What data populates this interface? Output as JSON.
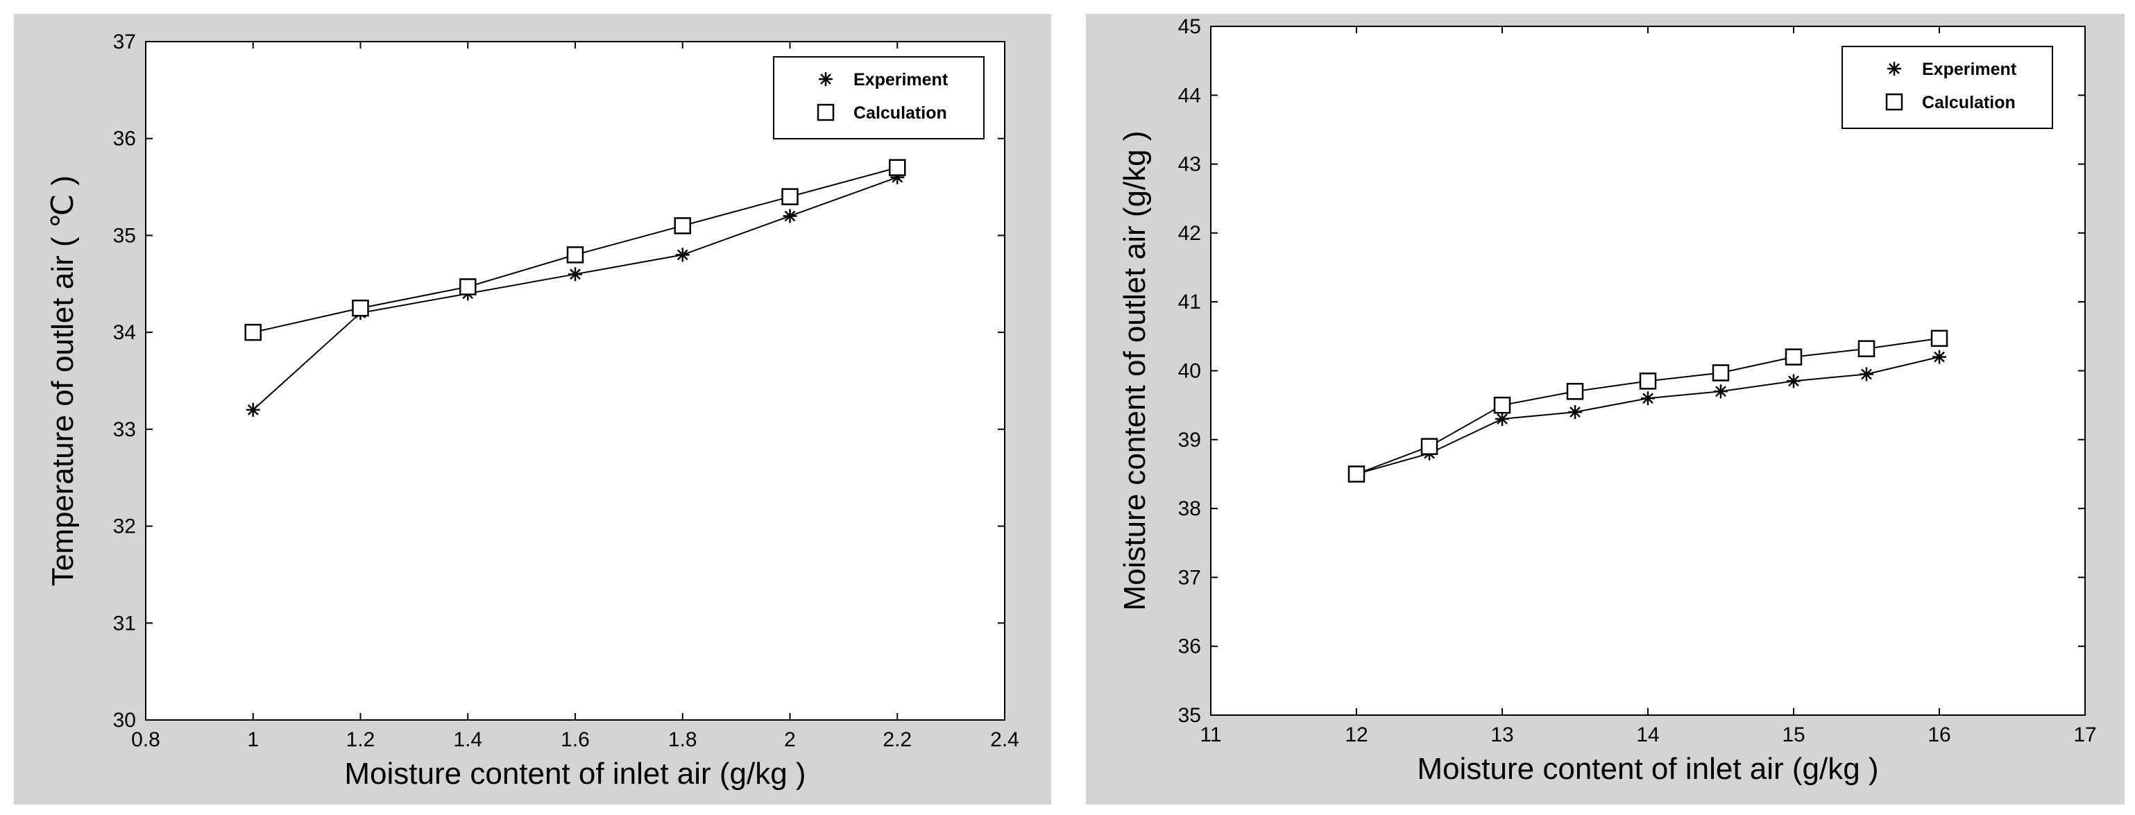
{
  "chart_data": [
    {
      "type": "line",
      "xlabel": "Moisture content of inlet air (g/kg )",
      "ylabel": "Temperature of outlet air ( ℃ )",
      "xlim": [
        0.8,
        2.4
      ],
      "ylim": [
        30,
        37
      ],
      "xticks": [
        0.8,
        1,
        1.2,
        1.4,
        1.6,
        1.8,
        2,
        2.2,
        2.4
      ],
      "yticks": [
        30,
        31,
        32,
        33,
        34,
        35,
        36,
        37
      ],
      "xtick_labels": [
        "0.8",
        "1",
        "1.2",
        "1.4",
        "1.6",
        "1.8",
        "2",
        "2.2",
        "2.4"
      ],
      "ytick_labels": [
        "30",
        "31",
        "32",
        "33",
        "34",
        "35",
        "36",
        "37"
      ],
      "grid": false,
      "legend_position": "top-right",
      "x": [
        1,
        1.2,
        1.4,
        1.6,
        1.8,
        2,
        2.2
      ],
      "series": [
        {
          "name": "Experiment",
          "marker": "asterisk",
          "values": [
            33.2,
            34.2,
            34.4,
            34.6,
            34.8,
            35.2,
            35.6
          ]
        },
        {
          "name": "Calculation",
          "marker": "square",
          "values": [
            34.0,
            34.25,
            34.47,
            34.8,
            35.1,
            35.4,
            35.7
          ]
        }
      ]
    },
    {
      "type": "line",
      "xlabel": "Moisture content of inlet air (g/kg )",
      "ylabel": "Moisture content of outlet air (g/kg )",
      "xlim": [
        11,
        17
      ],
      "ylim": [
        35,
        45
      ],
      "xticks": [
        11,
        12,
        13,
        14,
        15,
        16,
        17
      ],
      "yticks": [
        35,
        36,
        37,
        38,
        39,
        40,
        41,
        42,
        43,
        44,
        45
      ],
      "xtick_labels": [
        "11",
        "12",
        "13",
        "14",
        "15",
        "16",
        "17"
      ],
      "ytick_labels": [
        "35",
        "36",
        "37",
        "38",
        "39",
        "40",
        "41",
        "42",
        "43",
        "44",
        "45"
      ],
      "grid": false,
      "legend_position": "top-right",
      "x": [
        12,
        12.5,
        13,
        13.5,
        14,
        14.5,
        15,
        15.5,
        16
      ],
      "series": [
        {
          "name": "Experiment",
          "marker": "asterisk",
          "values": [
            38.5,
            38.8,
            39.3,
            39.4,
            39.6,
            39.7,
            39.85,
            39.95,
            40.2
          ]
        },
        {
          "name": "Calculation",
          "marker": "square",
          "values": [
            38.5,
            38.9,
            39.5,
            39.7,
            39.85,
            39.97,
            40.2,
            40.32,
            40.47
          ]
        }
      ]
    }
  ]
}
